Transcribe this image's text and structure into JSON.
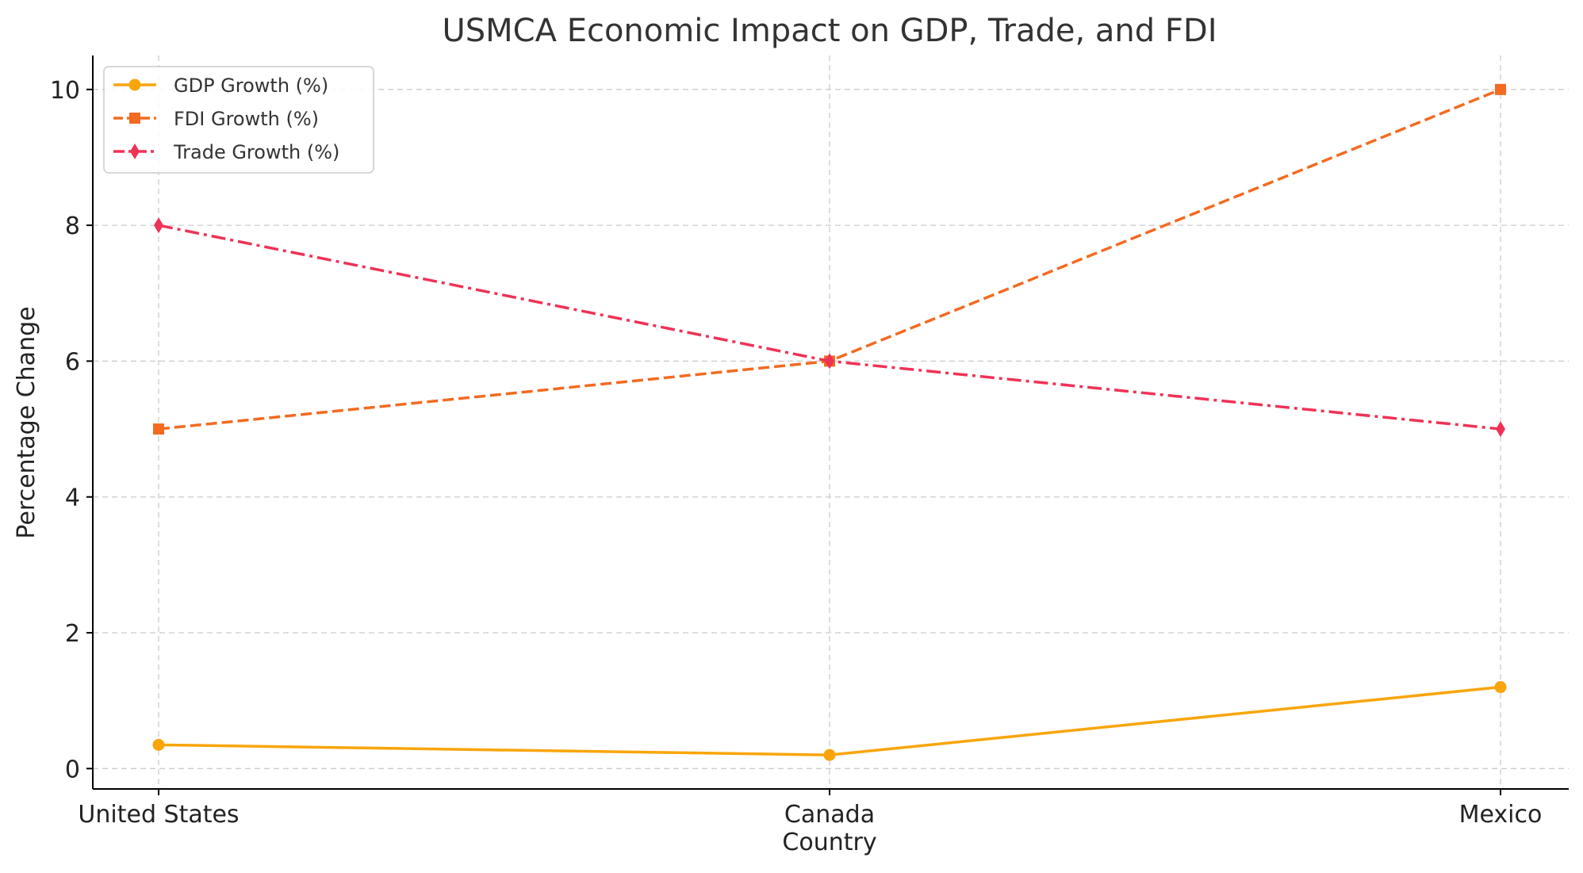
{
  "chart_data": {
    "type": "line",
    "title": "USMCA Economic Impact on GDP, Trade, and FDI",
    "xlabel": "Country",
    "ylabel": "Percentage Change",
    "categories": [
      "United States",
      "Canada",
      "Mexico"
    ],
    "ylim": [
      -0.3,
      10.5
    ],
    "yticks": [
      0,
      2,
      4,
      6,
      8,
      10
    ],
    "grid": true,
    "legend_position": "top-left",
    "series": [
      {
        "name": "GDP Growth (%)",
        "values": [
          0.35,
          0.2,
          1.2
        ],
        "color": "#F9A50B",
        "line_style": "solid",
        "marker": "circle"
      },
      {
        "name": "FDI Growth (%)",
        "values": [
          5,
          6,
          10
        ],
        "color": "#F26B21",
        "line_style": "dashed",
        "marker": "square"
      },
      {
        "name": "Trade Growth (%)",
        "values": [
          8,
          6,
          5
        ],
        "color": "#EE3356",
        "line_style": "dashdot",
        "marker": "diamond"
      }
    ]
  }
}
